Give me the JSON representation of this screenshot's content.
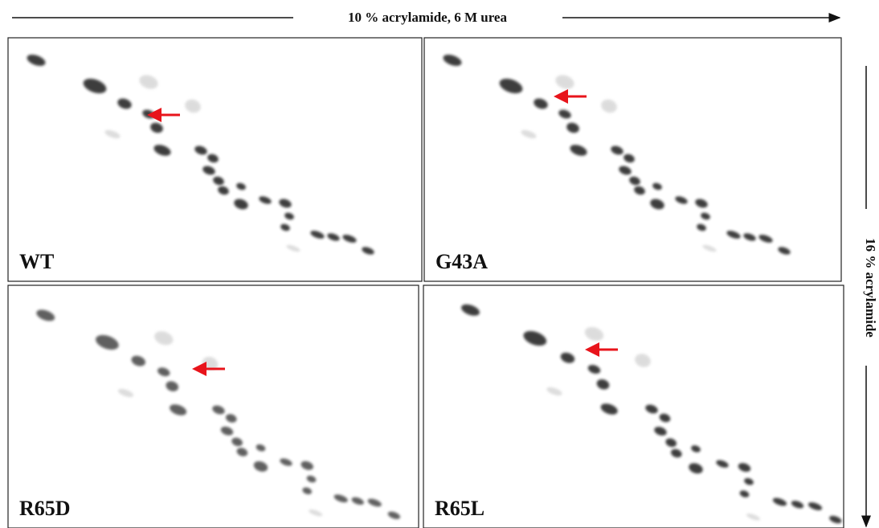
{
  "figure": {
    "x_axis_label": "10 % acrylamide, 6 M urea",
    "y_axis_label": "16 % acrylamide",
    "panels": [
      {
        "label": "WT"
      },
      {
        "label": "G43A"
      },
      {
        "label": "R65D"
      },
      {
        "label": "R65L"
      }
    ]
  }
}
